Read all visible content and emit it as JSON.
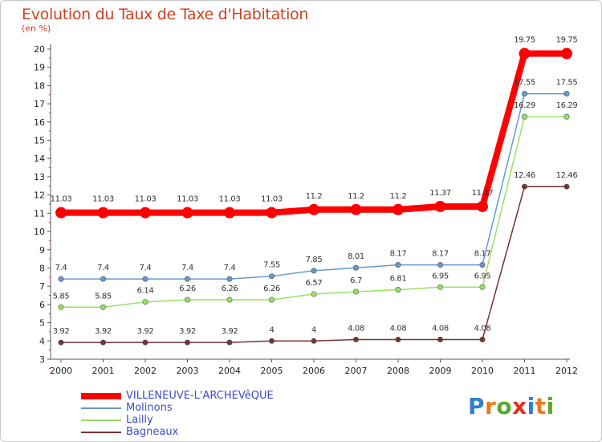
{
  "title": "Evolution du Taux de Taxe d'Habitation",
  "unit_label": "(en %)",
  "logo": {
    "letters": [
      {
        "ch": "P",
        "color": "#2f7fd0"
      },
      {
        "ch": "r",
        "color": "#e87a1e"
      },
      {
        "ch": "o",
        "color": "#5aa82a"
      },
      {
        "ch": "x",
        "color": "#e03020"
      },
      {
        "ch": "i",
        "color": "#2f7fd0"
      },
      {
        "ch": "t",
        "color": "#e87a1e"
      },
      {
        "ch": "i",
        "color": "#5aa82a"
      }
    ]
  },
  "chart_data": {
    "type": "line",
    "categories": [
      "2000",
      "2001",
      "2002",
      "2003",
      "2004",
      "2005",
      "2006",
      "2007",
      "2008",
      "2009",
      "2010",
      "2011",
      "2012"
    ],
    "ylim": [
      3,
      20
    ],
    "yticks": [
      3,
      4,
      5,
      6,
      7,
      8,
      9,
      10,
      11,
      12,
      13,
      14,
      15,
      16,
      17,
      18,
      19,
      20
    ],
    "grid": false,
    "legend_placement": "bottom-left",
    "series": [
      {
        "name": "VILLENEUVE-L'ARCHEVêQUE",
        "color": "#ff0000",
        "width": 8,
        "marker": 7,
        "values": [
          11.03,
          11.03,
          11.03,
          11.03,
          11.03,
          11.03,
          11.2,
          11.2,
          11.2,
          11.37,
          11.37,
          19.75,
          19.75
        ],
        "labels": [
          "11.03",
          "11.03",
          "11.03",
          "11.03",
          "11.03",
          "11.03",
          "11.2",
          "11.2",
          "11.2",
          "11.37",
          "11.37",
          "19.75",
          "19.75"
        ]
      },
      {
        "name": "Molinons",
        "color": "#6699cc",
        "width": 1.5,
        "marker": 3.2,
        "values": [
          7.4,
          7.4,
          7.4,
          7.4,
          7.4,
          7.55,
          7.85,
          8.01,
          8.17,
          8.17,
          8.17,
          17.55,
          17.55
        ],
        "labels": [
          "7.4",
          "7.4",
          "7.4",
          "7.4",
          "7.4",
          "7.55",
          "7.85",
          "8.01",
          "8.17",
          "8.17",
          "8.17",
          "17.55",
          "17.55"
        ]
      },
      {
        "name": "Lailly",
        "color": "#99e066",
        "width": 1.5,
        "marker": 3.2,
        "values": [
          5.85,
          5.85,
          6.14,
          6.26,
          6.26,
          6.26,
          6.57,
          6.7,
          6.81,
          6.95,
          6.95,
          16.29,
          16.29
        ],
        "labels": [
          "5.85",
          "5.85",
          "6.14",
          "6.26",
          "6.26",
          "6.26",
          "6.57",
          "6.7",
          "6.81",
          "6.95",
          "6.95",
          "16.29",
          "16.29"
        ]
      },
      {
        "name": "Bagneaux",
        "color": "#773333",
        "width": 1.5,
        "marker": 3.2,
        "values": [
          3.92,
          3.92,
          3.92,
          3.92,
          3.92,
          4,
          4,
          4.08,
          4.08,
          4.08,
          4.08,
          12.46,
          12.46
        ],
        "labels": [
          "3.92",
          "3.92",
          "3.92",
          "3.92",
          "3.92",
          "4",
          "4",
          "4.08",
          "4.08",
          "4.08",
          "4.08",
          "12.46",
          "12.46"
        ]
      }
    ]
  }
}
